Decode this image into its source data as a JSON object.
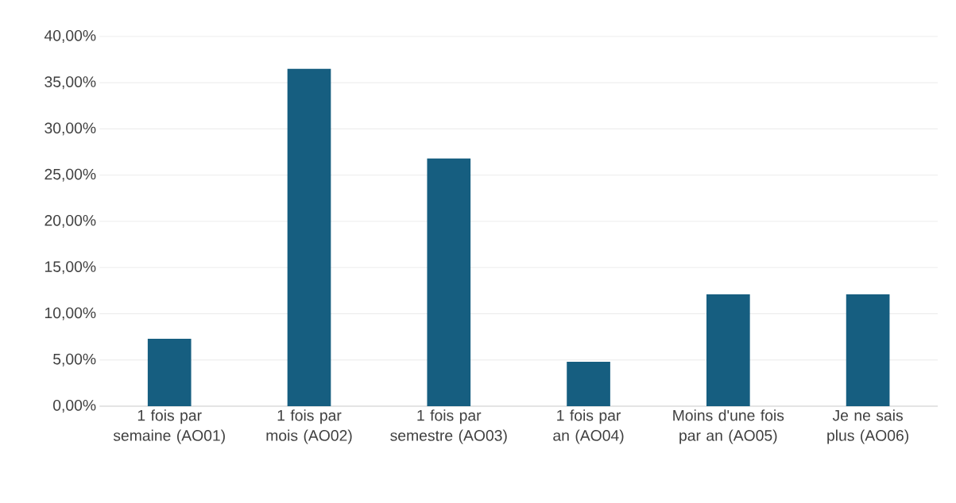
{
  "chart_data": {
    "type": "bar",
    "categories": [
      "1 fois par semaine (AO01)",
      "1 fois par mois (AO02)",
      "1 fois par semestre (AO03)",
      "1 fois par an (AO04)",
      "Moins d'une fois par an (AO05)",
      "Je ne sais plus (AO06)"
    ],
    "values": [
      7.3,
      36.5,
      26.8,
      4.8,
      12.1,
      12.1
    ],
    "color": "#165e80",
    "ylim": [
      0,
      40
    ],
    "yticks": [
      {
        "value": 0,
        "label": "0,00%"
      },
      {
        "value": 5,
        "label": "5,00%"
      },
      {
        "value": 10,
        "label": "10,00%"
      },
      {
        "value": 15,
        "label": "15,00%"
      },
      {
        "value": 20,
        "label": "20,00%"
      },
      {
        "value": 25,
        "label": "25,00%"
      },
      {
        "value": 30,
        "label": "30,00%"
      },
      {
        "value": 35,
        "label": "35,00%"
      },
      {
        "value": 40,
        "label": "40,00%"
      }
    ],
    "grid": "y"
  }
}
